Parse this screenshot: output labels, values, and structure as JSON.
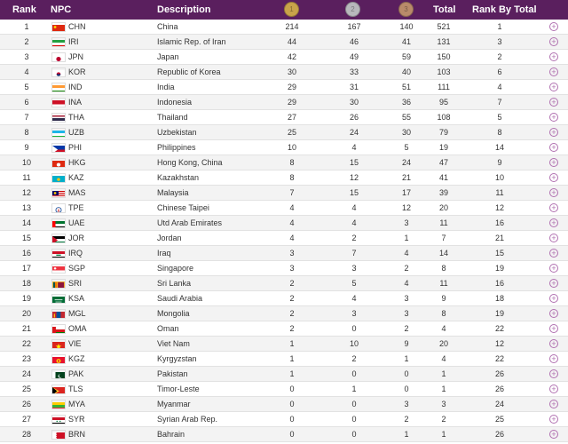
{
  "header": {
    "rank": "Rank",
    "npc": "NPC",
    "description": "Description",
    "total": "Total",
    "rank_by_total": "Rank By Total",
    "medals": {
      "gold": "#c9a34a",
      "silver": "#b8b8bc",
      "bronze": "#b98a6a"
    }
  },
  "rows": [
    {
      "rank": "1",
      "code": "CHN",
      "desc": "China",
      "g": "214",
      "s": "167",
      "b": "140",
      "t": "521",
      "rbt": "1",
      "flag": "chn"
    },
    {
      "rank": "2",
      "code": "IRI",
      "desc": "Islamic Rep. of Iran",
      "g": "44",
      "s": "46",
      "b": "41",
      "t": "131",
      "rbt": "3",
      "flag": "iri"
    },
    {
      "rank": "3",
      "code": "JPN",
      "desc": "Japan",
      "g": "42",
      "s": "49",
      "b": "59",
      "t": "150",
      "rbt": "2",
      "flag": "jpn"
    },
    {
      "rank": "4",
      "code": "KOR",
      "desc": "Republic of Korea",
      "g": "30",
      "s": "33",
      "b": "40",
      "t": "103",
      "rbt": "6",
      "flag": "kor"
    },
    {
      "rank": "5",
      "code": "IND",
      "desc": "India",
      "g": "29",
      "s": "31",
      "b": "51",
      "t": "111",
      "rbt": "4",
      "flag": "ind"
    },
    {
      "rank": "6",
      "code": "INA",
      "desc": "Indonesia",
      "g": "29",
      "s": "30",
      "b": "36",
      "t": "95",
      "rbt": "7",
      "flag": "ina"
    },
    {
      "rank": "7",
      "code": "THA",
      "desc": "Thailand",
      "g": "27",
      "s": "26",
      "b": "55",
      "t": "108",
      "rbt": "5",
      "flag": "tha"
    },
    {
      "rank": "8",
      "code": "UZB",
      "desc": "Uzbekistan",
      "g": "25",
      "s": "24",
      "b": "30",
      "t": "79",
      "rbt": "8",
      "flag": "uzb"
    },
    {
      "rank": "9",
      "code": "PHI",
      "desc": "Philippines",
      "g": "10",
      "s": "4",
      "b": "5",
      "t": "19",
      "rbt": "14",
      "flag": "phi"
    },
    {
      "rank": "10",
      "code": "HKG",
      "desc": "Hong Kong, China",
      "g": "8",
      "s": "15",
      "b": "24",
      "t": "47",
      "rbt": "9",
      "flag": "hkg"
    },
    {
      "rank": "11",
      "code": "KAZ",
      "desc": "Kazakhstan",
      "g": "8",
      "s": "12",
      "b": "21",
      "t": "41",
      "rbt": "10",
      "flag": "kaz"
    },
    {
      "rank": "12",
      "code": "MAS",
      "desc": "Malaysia",
      "g": "7",
      "s": "15",
      "b": "17",
      "t": "39",
      "rbt": "11",
      "flag": "mas"
    },
    {
      "rank": "13",
      "code": "TPE",
      "desc": "Chinese Taipei",
      "g": "4",
      "s": "4",
      "b": "12",
      "t": "20",
      "rbt": "12",
      "flag": "tpe"
    },
    {
      "rank": "14",
      "code": "UAE",
      "desc": "Utd Arab Emirates",
      "g": "4",
      "s": "4",
      "b": "3",
      "t": "11",
      "rbt": "16",
      "flag": "uae"
    },
    {
      "rank": "15",
      "code": "JOR",
      "desc": "Jordan",
      "g": "4",
      "s": "2",
      "b": "1",
      "t": "7",
      "rbt": "21",
      "flag": "jor"
    },
    {
      "rank": "16",
      "code": "IRQ",
      "desc": "Iraq",
      "g": "3",
      "s": "7",
      "b": "4",
      "t": "14",
      "rbt": "15",
      "flag": "irq"
    },
    {
      "rank": "17",
      "code": "SGP",
      "desc": "Singapore",
      "g": "3",
      "s": "3",
      "b": "2",
      "t": "8",
      "rbt": "19",
      "flag": "sgp"
    },
    {
      "rank": "18",
      "code": "SRI",
      "desc": "Sri Lanka",
      "g": "2",
      "s": "5",
      "b": "4",
      "t": "11",
      "rbt": "16",
      "flag": "sri"
    },
    {
      "rank": "19",
      "code": "KSA",
      "desc": "Saudi Arabia",
      "g": "2",
      "s": "4",
      "b": "3",
      "t": "9",
      "rbt": "18",
      "flag": "ksa"
    },
    {
      "rank": "20",
      "code": "MGL",
      "desc": "Mongolia",
      "g": "2",
      "s": "3",
      "b": "3",
      "t": "8",
      "rbt": "19",
      "flag": "mgl"
    },
    {
      "rank": "21",
      "code": "OMA",
      "desc": "Oman",
      "g": "2",
      "s": "0",
      "b": "2",
      "t": "4",
      "rbt": "22",
      "flag": "oma"
    },
    {
      "rank": "22",
      "code": "VIE",
      "desc": "Viet Nam",
      "g": "1",
      "s": "10",
      "b": "9",
      "t": "20",
      "rbt": "12",
      "flag": "vie"
    },
    {
      "rank": "23",
      "code": "KGZ",
      "desc": "Kyrgyzstan",
      "g": "1",
      "s": "2",
      "b": "1",
      "t": "4",
      "rbt": "22",
      "flag": "kgz"
    },
    {
      "rank": "24",
      "code": "PAK",
      "desc": "Pakistan",
      "g": "1",
      "s": "0",
      "b": "0",
      "t": "1",
      "rbt": "26",
      "flag": "pak"
    },
    {
      "rank": "25",
      "code": "TLS",
      "desc": "Timor-Leste",
      "g": "0",
      "s": "1",
      "b": "0",
      "t": "1",
      "rbt": "26",
      "flag": "tls"
    },
    {
      "rank": "26",
      "code": "MYA",
      "desc": "Myanmar",
      "g": "0",
      "s": "0",
      "b": "3",
      "t": "3",
      "rbt": "24",
      "flag": "mya"
    },
    {
      "rank": "27",
      "code": "SYR",
      "desc": "Syrian Arab Rep.",
      "g": "0",
      "s": "0",
      "b": "2",
      "t": "2",
      "rbt": "25",
      "flag": "syr"
    },
    {
      "rank": "28",
      "code": "BRN",
      "desc": "Bahrain",
      "g": "0",
      "s": "0",
      "b": "1",
      "t": "1",
      "rbt": "26",
      "flag": "brn"
    }
  ]
}
